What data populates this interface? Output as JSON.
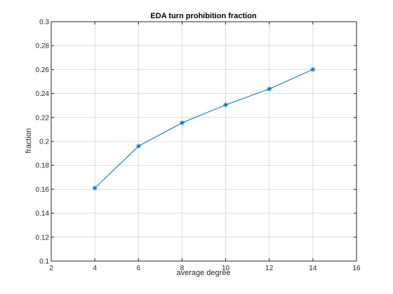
{
  "chart_data": {
    "type": "line",
    "title": "EDA turn prohibition fraction",
    "xlabel": "average degree",
    "ylabel": "fraction",
    "xlim": [
      2,
      16
    ],
    "ylim": [
      0.1,
      0.3
    ],
    "xticks": [
      2,
      4,
      6,
      8,
      10,
      12,
      14,
      16
    ],
    "yticks": [
      0.1,
      0.12,
      0.14,
      0.16,
      0.18,
      0.2,
      0.22,
      0.24,
      0.26,
      0.28,
      0.3
    ],
    "grid": true,
    "series": [
      {
        "x": [
          4,
          6,
          8,
          10,
          12,
          14
        ],
        "y": [
          0.161,
          0.196,
          0.2155,
          0.2305,
          0.2438,
          0.2601
        ],
        "marker": "asterisk",
        "color": "#0072BD"
      }
    ]
  }
}
